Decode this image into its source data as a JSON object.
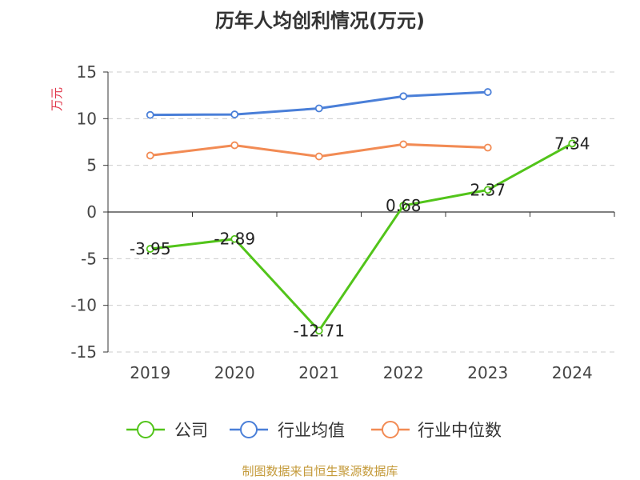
{
  "chart_data": {
    "type": "line",
    "title": "历年人均创利情况(万元)",
    "ylabel": "万元",
    "xlabel": "",
    "categories": [
      "2019",
      "2020",
      "2021",
      "2022",
      "2023",
      "2024"
    ],
    "ylim": [
      -15,
      15
    ],
    "yticks": [
      15,
      10,
      5,
      0,
      -5,
      -10,
      -15
    ],
    "grid": true,
    "legend_position": "bottom",
    "series": [
      {
        "name": "公司",
        "color": "#52c41a",
        "values": [
          -3.95,
          -2.89,
          -12.71,
          0.68,
          2.37,
          7.34
        ],
        "labels": [
          "-3.95",
          "-2.89",
          "-12.71",
          "0.68",
          "2.37",
          "7.34"
        ]
      },
      {
        "name": "行业均值",
        "color": "#4a7fd8",
        "values": [
          10.4,
          10.45,
          11.1,
          12.4,
          12.85,
          null
        ]
      },
      {
        "name": "行业中位数",
        "color": "#f28b54",
        "values": [
          6.05,
          7.15,
          5.95,
          7.25,
          6.9,
          null
        ]
      }
    ]
  },
  "footer": {
    "source": "制图数据来自恒生聚源数据库"
  }
}
